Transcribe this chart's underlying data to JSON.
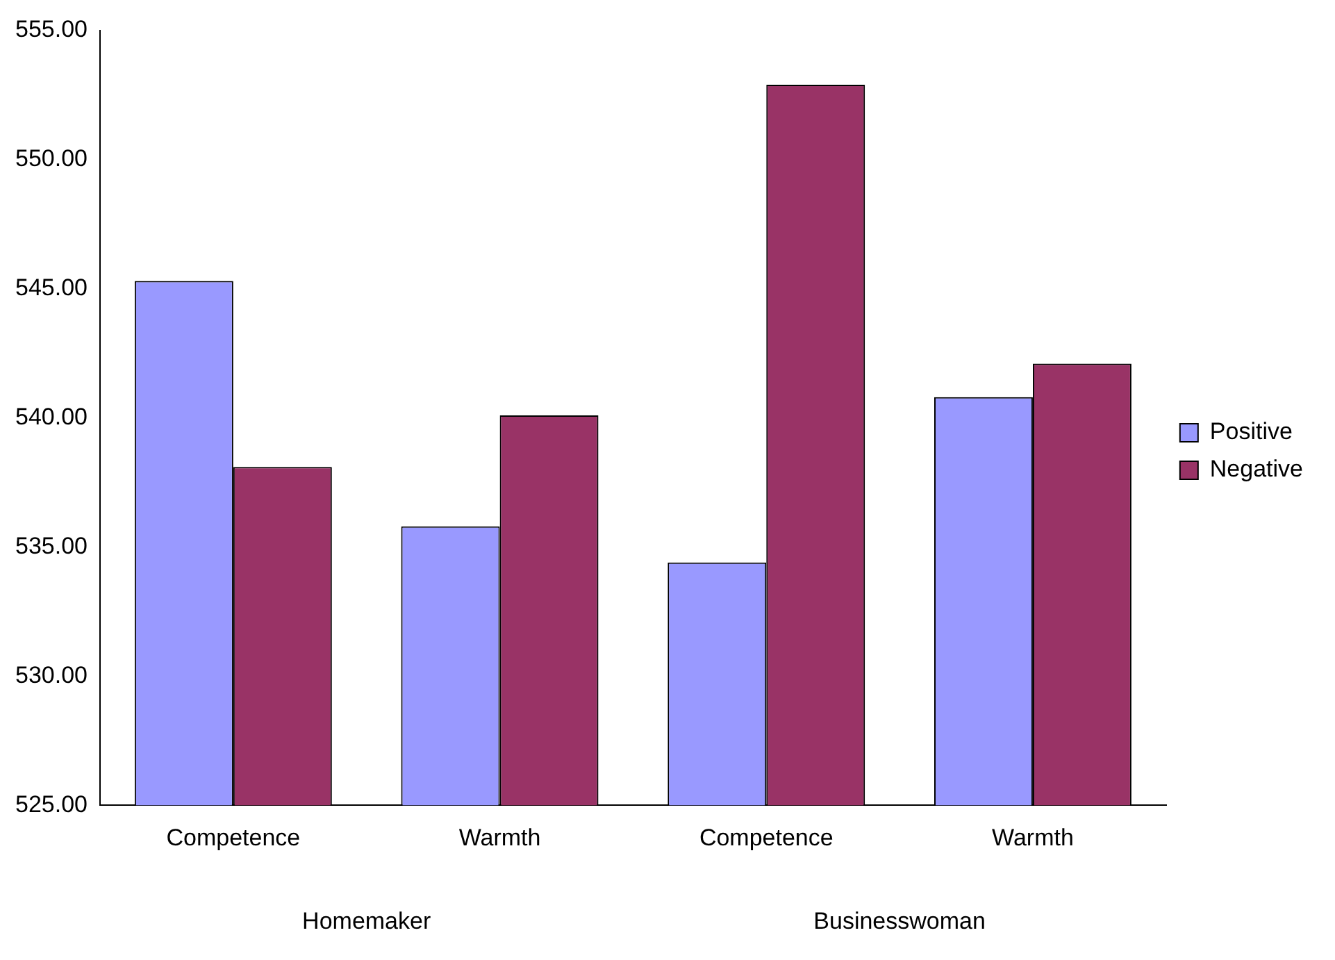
{
  "chart_data": {
    "type": "bar",
    "categories": [
      "Competence",
      "Warmth",
      "Competence",
      "Warmth"
    ],
    "series": [
      {
        "name": "Positive",
        "color": "#9999ff",
        "values": [
          545.3,
          535.8,
          534.4,
          540.8
        ]
      },
      {
        "name": "Negative",
        "color": "#993366",
        "values": [
          538.1,
          540.1,
          552.9,
          542.1
        ]
      }
    ],
    "ylim": [
      525,
      555
    ],
    "yticks": [
      {
        "value": 525,
        "label": "525.00"
      },
      {
        "value": 530,
        "label": "530.00"
      },
      {
        "value": 535,
        "label": "535.00"
      },
      {
        "value": 540,
        "label": "540.00"
      },
      {
        "value": 545,
        "label": "545.00"
      },
      {
        "value": 550,
        "label": "550.00"
      },
      {
        "value": 555,
        "label": "555.00"
      }
    ],
    "annotations": [
      "Homemaker",
      "Businesswoman"
    ],
    "grid": false,
    "legend": "right"
  }
}
